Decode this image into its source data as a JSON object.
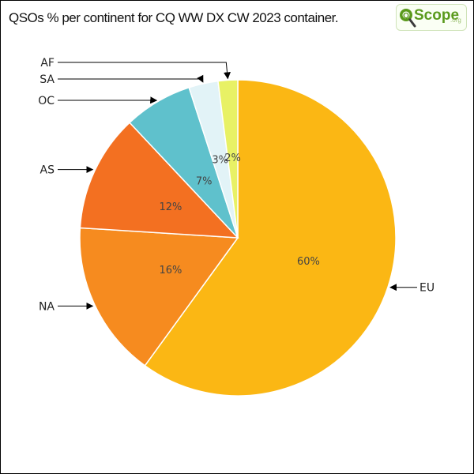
{
  "header": {
    "title": "QSOs % per continent for CQ WW DX CW 2023 container."
  },
  "logo": {
    "word": "Scope",
    "suffix": ".org",
    "icon": "magnifier-q-icon"
  },
  "chart_data": {
    "type": "pie",
    "title": "QSOs % per continent for CQ WW DX CW 2023 container.",
    "slices": [
      {
        "label": "EU",
        "value": 60,
        "value_label": "60%",
        "color": "#fbb714"
      },
      {
        "label": "NA",
        "value": 16,
        "value_label": "16%",
        "color": "#f68b1f"
      },
      {
        "label": "AS",
        "value": 12,
        "value_label": "12%",
        "color": "#f37021"
      },
      {
        "label": "OC",
        "value": 7,
        "value_label": "7%",
        "color": "#5fc1cc"
      },
      {
        "label": "SA",
        "value": 3,
        "value_label": "3%",
        "color": "#e2f3f7"
      },
      {
        "label": "AF",
        "value": 2,
        "value_label": "2%",
        "color": "#e8f165"
      }
    ],
    "start": "12 o'clock",
    "direction": "clockwise",
    "legend": "none"
  }
}
